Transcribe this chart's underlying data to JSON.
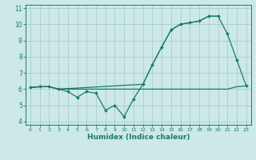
{
  "title": "",
  "xlabel": "Humidex (Indice chaleur)",
  "bg_color": "#cce8e8",
  "grid_color": "#aacccc",
  "line_color": "#1a7a6a",
  "xlim": [
    -0.5,
    23.5
  ],
  "ylim": [
    3.8,
    11.2
  ],
  "xticks": [
    0,
    1,
    2,
    3,
    4,
    5,
    6,
    7,
    8,
    9,
    10,
    11,
    12,
    13,
    14,
    15,
    16,
    17,
    18,
    19,
    20,
    21,
    22,
    23
  ],
  "yticks": [
    4,
    5,
    6,
    7,
    8,
    9,
    10,
    11
  ],
  "line1_x": [
    0,
    1,
    2,
    3,
    10,
    11,
    12,
    13,
    14,
    15,
    16,
    17,
    18,
    19,
    20,
    21,
    22,
    23
  ],
  "line1_y": [
    6.1,
    6.15,
    6.15,
    6.0,
    6.0,
    6.0,
    6.0,
    6.0,
    6.0,
    6.0,
    6.0,
    6.0,
    6.0,
    6.0,
    6.0,
    6.0,
    6.15,
    6.2
  ],
  "line2_x": [
    0,
    1,
    2,
    3,
    4,
    5,
    6,
    7,
    8,
    9,
    10,
    11,
    12,
    13,
    14,
    15,
    16,
    17,
    18,
    19,
    20,
    21,
    22,
    23
  ],
  "line2_y": [
    6.1,
    6.15,
    6.15,
    6.0,
    5.85,
    5.5,
    5.85,
    5.75,
    4.7,
    5.0,
    4.3,
    5.4,
    6.3,
    7.5,
    8.6,
    9.65,
    10.0,
    10.1,
    10.2,
    10.5,
    10.5,
    9.4,
    7.8,
    6.2
  ],
  "line3_x": [
    0,
    1,
    2,
    3,
    12,
    13,
    14,
    15,
    16,
    17,
    18,
    19,
    20
  ],
  "line3_y": [
    6.1,
    6.15,
    6.15,
    6.0,
    6.3,
    7.5,
    8.6,
    9.65,
    10.0,
    10.1,
    10.2,
    10.5,
    10.5
  ]
}
